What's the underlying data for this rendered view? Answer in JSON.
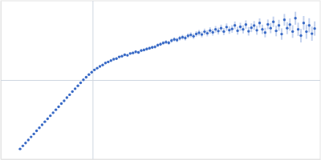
{
  "chart_data": {
    "type": "scatter",
    "color": "#3a6bc6",
    "marker": "circle",
    "grid": true,
    "tick_labels": false,
    "xlim": [
      0,
      3.48
    ],
    "ylim": [
      -1,
      1
    ],
    "xticks": [
      1
    ],
    "yticks": [
      0
    ],
    "x": [
      0.21,
      0.24,
      0.27,
      0.3,
      0.33,
      0.36,
      0.39,
      0.42,
      0.45,
      0.48,
      0.51,
      0.54,
      0.57,
      0.6,
      0.63,
      0.66,
      0.69,
      0.72,
      0.75,
      0.78,
      0.81,
      0.84,
      0.87,
      0.9,
      0.93,
      0.96,
      0.99,
      1.02,
      1.05,
      1.08,
      1.11,
      1.14,
      1.17,
      1.2,
      1.23,
      1.26,
      1.29,
      1.32,
      1.35,
      1.38,
      1.41,
      1.44,
      1.47,
      1.5,
      1.53,
      1.56,
      1.59,
      1.62,
      1.65,
      1.68,
      1.71,
      1.74,
      1.77,
      1.8,
      1.83,
      1.86,
      1.89,
      1.92,
      1.95,
      1.98,
      2.01,
      2.04,
      2.07,
      2.1,
      2.13,
      2.16,
      2.19,
      2.22,
      2.25,
      2.28,
      2.31,
      2.34,
      2.37,
      2.4,
      2.43,
      2.46,
      2.49,
      2.52,
      2.55,
      2.58,
      2.61,
      2.64,
      2.67,
      2.7,
      2.73,
      2.76,
      2.79,
      2.82,
      2.85,
      2.88,
      2.91,
      2.94,
      2.97,
      3.0,
      3.03,
      3.06,
      3.09,
      3.12,
      3.15,
      3.18,
      3.21,
      3.24,
      3.27,
      3.3,
      3.33,
      3.36,
      3.39,
      3.42
    ],
    "values": [
      -0.87,
      -0.832,
      -0.795,
      -0.757,
      -0.718,
      -0.681,
      -0.641,
      -0.604,
      -0.566,
      -0.527,
      -0.49,
      -0.451,
      -0.413,
      -0.375,
      -0.338,
      -0.298,
      -0.262,
      -0.222,
      -0.186,
      -0.147,
      -0.11,
      -0.073,
      -0.036,
      0.002,
      0.035,
      0.068,
      0.098,
      0.128,
      0.15,
      0.172,
      0.19,
      0.215,
      0.228,
      0.245,
      0.262,
      0.27,
      0.292,
      0.3,
      0.318,
      0.312,
      0.335,
      0.342,
      0.356,
      0.348,
      0.372,
      0.38,
      0.392,
      0.401,
      0.412,
      0.418,
      0.44,
      0.452,
      0.468,
      0.478,
      0.47,
      0.498,
      0.512,
      0.505,
      0.528,
      0.54,
      0.53,
      0.558,
      0.57,
      0.552,
      0.582,
      0.596,
      0.575,
      0.61,
      0.59,
      0.625,
      0.602,
      0.64,
      0.618,
      0.655,
      0.612,
      0.668,
      0.63,
      0.645,
      0.69,
      0.622,
      0.672,
      0.64,
      0.7,
      0.615,
      0.66,
      0.688,
      0.628,
      0.72,
      0.64,
      0.598,
      0.702,
      0.655,
      0.735,
      0.62,
      0.69,
      0.58,
      0.76,
      0.655,
      0.7,
      0.612,
      0.78,
      0.64,
      0.56,
      0.72,
      0.61,
      0.69,
      0.585,
      0.65
    ],
    "errors": [
      0.005,
      0.005,
      0.005,
      0.005,
      0.005,
      0.005,
      0.005,
      0.005,
      0.005,
      0.005,
      0.005,
      0.005,
      0.005,
      0.005,
      0.005,
      0.005,
      0.006,
      0.006,
      0.006,
      0.006,
      0.007,
      0.007,
      0.007,
      0.008,
      0.008,
      0.008,
      0.01,
      0.01,
      0.011,
      0.011,
      0.012,
      0.012,
      0.013,
      0.013,
      0.014,
      0.014,
      0.015,
      0.015,
      0.016,
      0.016,
      0.017,
      0.017,
      0.018,
      0.018,
      0.019,
      0.019,
      0.02,
      0.02,
      0.021,
      0.021,
      0.022,
      0.022,
      0.023,
      0.024,
      0.025,
      0.026,
      0.027,
      0.028,
      0.029,
      0.03,
      0.031,
      0.032,
      0.033,
      0.034,
      0.035,
      0.036,
      0.037,
      0.038,
      0.039,
      0.04,
      0.041,
      0.042,
      0.043,
      0.044,
      0.045,
      0.046,
      0.047,
      0.048,
      0.049,
      0.05,
      0.051,
      0.052,
      0.053,
      0.054,
      0.055,
      0.056,
      0.057,
      0.058,
      0.059,
      0.06,
      0.062,
      0.064,
      0.066,
      0.068,
      0.07,
      0.072,
      0.074,
      0.076,
      0.078,
      0.08,
      0.082,
      0.084,
      0.086,
      0.088,
      0.09,
      0.09,
      0.09,
      0.09
    ]
  }
}
